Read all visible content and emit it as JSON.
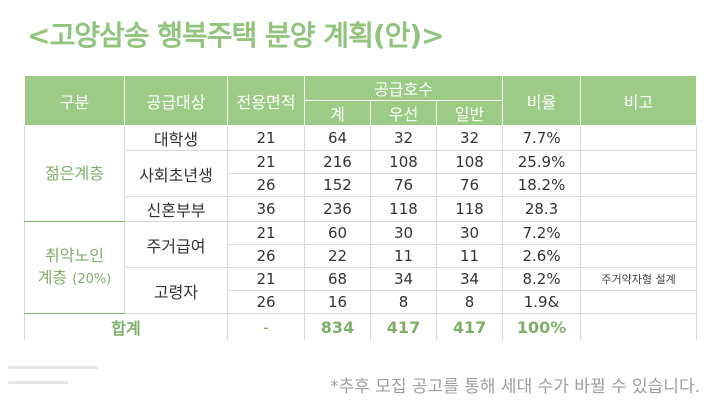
{
  "title": "<고양삼송 행복주택 분양 계획(안)>",
  "header": {
    "category": "구분",
    "target": "공급대상",
    "area": "전용면적",
    "supply": "공급호수",
    "supply_total": "계",
    "supply_priority": "우선",
    "supply_general": "일반",
    "ratio": "비율",
    "remarks": "비고"
  },
  "groups": {
    "youth": "젊은계층",
    "vulnerable_line1": "취약노인",
    "vulnerable_line2": "계층",
    "vulnerable_pct": "(20%)"
  },
  "rows": [
    {
      "target": "대학생",
      "area": "21",
      "total": "64",
      "priority": "32",
      "general": "32",
      "ratio": "7.7%",
      "remark": ""
    },
    {
      "target": "사회초년생",
      "area": "21",
      "total": "216",
      "priority": "108",
      "general": "108",
      "ratio": "25.9%",
      "remark": ""
    },
    {
      "target": "",
      "area": "26",
      "total": "152",
      "priority": "76",
      "general": "76",
      "ratio": "18.2%",
      "remark": ""
    },
    {
      "target": "신혼부부",
      "area": "36",
      "total": "236",
      "priority": "118",
      "general": "118",
      "ratio": "28.3",
      "remark": ""
    },
    {
      "target": "주거급여",
      "area": "21",
      "total": "60",
      "priority": "30",
      "general": "30",
      "ratio": "7.2%",
      "remark": ""
    },
    {
      "target": "",
      "area": "26",
      "total": "22",
      "priority": "11",
      "general": "11",
      "ratio": "2.6%",
      "remark": ""
    },
    {
      "target": "고령자",
      "area": "21",
      "total": "68",
      "priority": "34",
      "general": "34",
      "ratio": "8.2%",
      "remark": "주거약자형 설계"
    },
    {
      "target": "",
      "area": "26",
      "total": "16",
      "priority": "8",
      "general": "8",
      "ratio": "1.9&",
      "remark": ""
    }
  ],
  "total_row": {
    "label": "합계",
    "area": "-",
    "total": "834",
    "priority": "417",
    "general": "417",
    "ratio": "100%"
  },
  "footnote": "*추후 모집 공고를 통해 세대 수가 바뀔 수 있습니다."
}
